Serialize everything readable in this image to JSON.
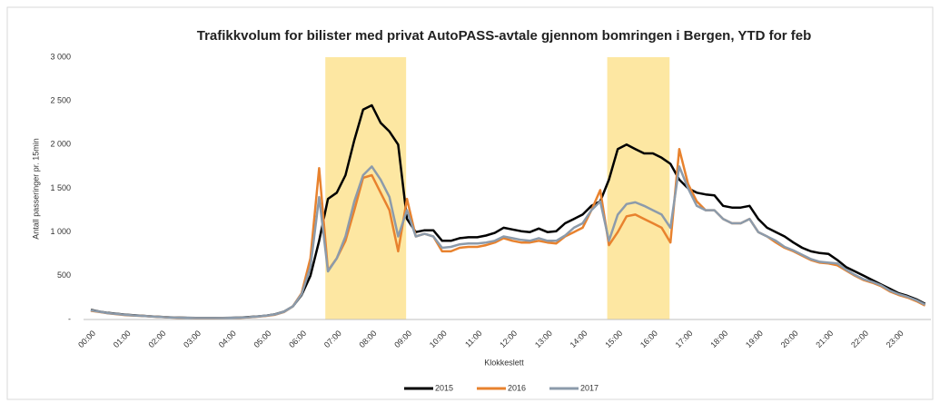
{
  "chart_data": {
    "type": "line",
    "title": "Trafikkvolum for bilister med privat AutoPASS-avtale gjennom bomringen i Bergen, YTD for feb",
    "x_label": "Klokkeslett",
    "y_label": "Antall passeringer pr. 15min",
    "categories": [
      "00:00",
      null,
      null,
      null,
      "01:00",
      null,
      null,
      null,
      "02:00",
      null,
      null,
      null,
      "03:00",
      null,
      null,
      null,
      "04:00",
      null,
      null,
      null,
      "05:00",
      null,
      null,
      null,
      "06:00",
      null,
      null,
      null,
      "07:00",
      null,
      null,
      null,
      "08:00",
      null,
      null,
      null,
      "09:00",
      null,
      null,
      null,
      "10:00",
      null,
      null,
      null,
      "11:00",
      null,
      null,
      null,
      "12:00",
      null,
      null,
      null,
      "13:00",
      null,
      null,
      null,
      "14:00",
      null,
      null,
      null,
      "15:00",
      null,
      null,
      null,
      "16:00",
      null,
      null,
      null,
      "17:00",
      null,
      null,
      null,
      "18:00",
      null,
      null,
      null,
      "19:00",
      null,
      null,
      null,
      "20:00",
      null,
      null,
      null,
      "21:00",
      null,
      null,
      null,
      "22:00",
      null,
      null,
      null,
      "23:00",
      null,
      null,
      null
    ],
    "ylim": [
      0,
      3000
    ],
    "yticks": [
      {
        "value": 0,
        "label": "-"
      },
      500,
      {
        "value": 1000,
        "label": "1 000"
      },
      {
        "value": 1500,
        "label": "1 500"
      },
      {
        "value": 2000,
        "label": "2 000"
      },
      {
        "value": 2500,
        "label": "2 500"
      },
      {
        "value": 3000,
        "label": "3 000"
      }
    ],
    "grid": false,
    "legend": "bottom",
    "series": [
      {
        "name": "2015",
        "color": "#000000",
        "values": [
          110,
          90,
          75,
          65,
          55,
          48,
          42,
          35,
          30,
          25,
          22,
          20,
          18,
          18,
          18,
          18,
          20,
          22,
          28,
          35,
          45,
          60,
          90,
          150,
          280,
          500,
          900,
          1380,
          1450,
          1650,
          2050,
          2400,
          2450,
          2250,
          2150,
          2000,
          1150,
          1000,
          1020,
          1020,
          900,
          900,
          930,
          940,
          940,
          960,
          990,
          1050,
          1030,
          1010,
          1000,
          1040,
          1000,
          1010,
          1100,
          1150,
          1200,
          1300,
          1350,
          1600,
          1950,
          2000,
          1950,
          1900,
          1900,
          1850,
          1780,
          1600,
          1500,
          1450,
          1430,
          1420,
          1300,
          1280,
          1280,
          1300,
          1150,
          1050,
          1000,
          950,
          880,
          820,
          780,
          760,
          750,
          680,
          600,
          550,
          500,
          450,
          400,
          350,
          300,
          270,
          230,
          180
        ]
      },
      {
        "name": "2016",
        "color": "#e8822e",
        "values": [
          100,
          85,
          70,
          60,
          50,
          45,
          40,
          33,
          28,
          24,
          20,
          18,
          16,
          16,
          16,
          17,
          18,
          20,
          25,
          32,
          42,
          55,
          85,
          150,
          300,
          700,
          1730,
          560,
          700,
          900,
          1250,
          1620,
          1650,
          1450,
          1250,
          780,
          1380,
          950,
          980,
          950,
          780,
          780,
          820,
          830,
          830,
          850,
          880,
          930,
          900,
          880,
          880,
          900,
          880,
          870,
          950,
          1000,
          1050,
          1250,
          1480,
          850,
          1000,
          1180,
          1200,
          1150,
          1100,
          1050,
          880,
          1950,
          1550,
          1350,
          1250,
          1250,
          1150,
          1100,
          1100,
          1150,
          1000,
          950,
          880,
          820,
          780,
          730,
          680,
          650,
          640,
          620,
          560,
          500,
          450,
          420,
          380,
          320,
          280,
          250,
          210,
          160
        ]
      },
      {
        "name": "2017",
        "color": "#8c9bab",
        "values": [
          105,
          88,
          72,
          62,
          52,
          46,
          41,
          34,
          29,
          24,
          21,
          19,
          17,
          17,
          17,
          17,
          19,
          21,
          26,
          34,
          44,
          58,
          88,
          150,
          290,
          600,
          1400,
          550,
          700,
          950,
          1350,
          1650,
          1750,
          1600,
          1400,
          950,
          1250,
          950,
          980,
          950,
          820,
          830,
          860,
          870,
          870,
          880,
          900,
          950,
          930,
          910,
          900,
          930,
          900,
          900,
          960,
          1050,
          1100,
          1250,
          1350,
          900,
          1200,
          1320,
          1340,
          1300,
          1250,
          1200,
          1050,
          1750,
          1500,
          1300,
          1250,
          1250,
          1150,
          1100,
          1100,
          1150,
          1000,
          950,
          900,
          830,
          790,
          740,
          690,
          660,
          650,
          640,
          570,
          510,
          460,
          430,
          390,
          330,
          290,
          260,
          220,
          170
        ]
      }
    ]
  }
}
